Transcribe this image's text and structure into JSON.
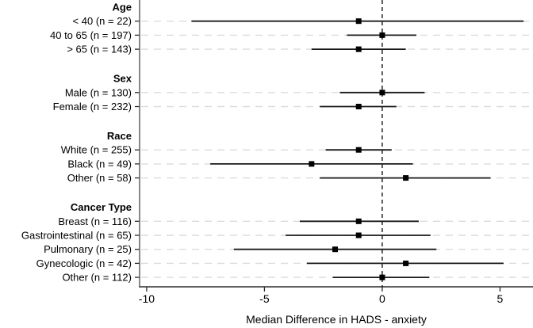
{
  "chart_data": {
    "type": "forest",
    "title": "",
    "xlabel": "Median Difference in HADS - anxiety",
    "x_ticks": [
      -10,
      -5,
      0,
      5
    ],
    "x_tick_labels": [
      "-10",
      "-5",
      "0",
      "5"
    ],
    "xlim": [
      -10.3,
      6.4
    ],
    "zero_line_value": 0,
    "grid": true,
    "legend": "none",
    "colors": {
      "marker": "#000000",
      "ci_line": "#1a1a1a",
      "gridline": "#dcdcdc",
      "axis": "#606060",
      "tick": "#2a2a2a",
      "zero_line": "#000000",
      "text": "#000000",
      "background": "#ffffff"
    },
    "groups": [
      {
        "header": "Age",
        "items": [
          {
            "display": "< 40 (n = 22)",
            "n": 22,
            "est": -1.0,
            "lo": -8.1,
            "hi": 6.0
          },
          {
            "display": "40 to 65 (n = 197)",
            "n": 197,
            "est": 0.0,
            "lo": -1.5,
            "hi": 1.45
          },
          {
            "display": "> 65 (n = 143)",
            "n": 143,
            "est": -1.0,
            "lo": -3.0,
            "hi": 1.0
          }
        ]
      },
      {
        "header": "Sex",
        "items": [
          {
            "display": "Male (n = 130)",
            "n": 130,
            "est": 0.0,
            "lo": -1.8,
            "hi": 1.8
          },
          {
            "display": "Female (n = 232)",
            "n": 232,
            "est": -1.0,
            "lo": -2.65,
            "hi": 0.6
          }
        ]
      },
      {
        "header": "Race",
        "items": [
          {
            "display": "White (n = 255)",
            "n": 255,
            "est": -1.0,
            "lo": -2.4,
            "hi": 0.4
          },
          {
            "display": "Black (n = 49)",
            "n": 49,
            "est": -3.0,
            "lo": -7.3,
            "hi": 1.3
          },
          {
            "display": "Other (n = 58)",
            "n": 58,
            "est": 1.0,
            "lo": -2.65,
            "hi": 4.6
          }
        ]
      },
      {
        "header": "Cancer Type",
        "items": [
          {
            "display": "Breast (n = 116)",
            "n": 116,
            "est": -1.0,
            "lo": -3.5,
            "hi": 1.55
          },
          {
            "display": "Gastrointestinal (n = 65)",
            "n": 65,
            "est": -1.0,
            "lo": -4.1,
            "hi": 2.05
          },
          {
            "display": "Pulmonary (n = 25)",
            "n": 25,
            "est": -2.0,
            "lo": -6.3,
            "hi": 2.3
          },
          {
            "display": "Gynecologic (n = 42)",
            "n": 42,
            "est": 1.0,
            "lo": -3.2,
            "hi": 5.15
          },
          {
            "display": "Other (n = 112)",
            "n": 112,
            "est": 0.0,
            "lo": -2.1,
            "hi": 2.0
          }
        ]
      }
    ]
  }
}
